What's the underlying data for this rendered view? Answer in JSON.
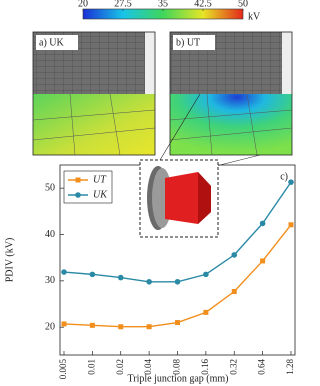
{
  "chart_data": {
    "type": "line",
    "y_label": "PDIV (kV)",
    "x_label": "Triple junction gap (mm)",
    "panel_labels": [
      "a) UK",
      "b) UT",
      "c)"
    ],
    "categories": [
      "0.005",
      "0.01",
      "0.02",
      "0.04",
      "0.08",
      "0.16",
      "0.32",
      "0.64",
      "1.28"
    ],
    "series": [
      {
        "name": "UT",
        "color": "#f28e1c",
        "marker": "square",
        "values": [
          20.7,
          20.4,
          20.1,
          20.1,
          21.0,
          23.2,
          27.7,
          34.3,
          42.1
        ]
      },
      {
        "name": "UK",
        "color": "#2a8aa6",
        "marker": "circle",
        "values": [
          31.9,
          31.4,
          30.7,
          29.8,
          29.8,
          31.4,
          35.6,
          42.4,
          51.3
        ]
      }
    ],
    "ylim": [
      14,
      55
    ],
    "yticks": [
      20,
      30,
      40,
      50
    ],
    "legend": "upper left",
    "colorbar": {
      "range": [
        20,
        50
      ],
      "ticks": [
        20,
        27.5,
        35,
        42.5,
        50
      ],
      "unit": "kV"
    }
  }
}
